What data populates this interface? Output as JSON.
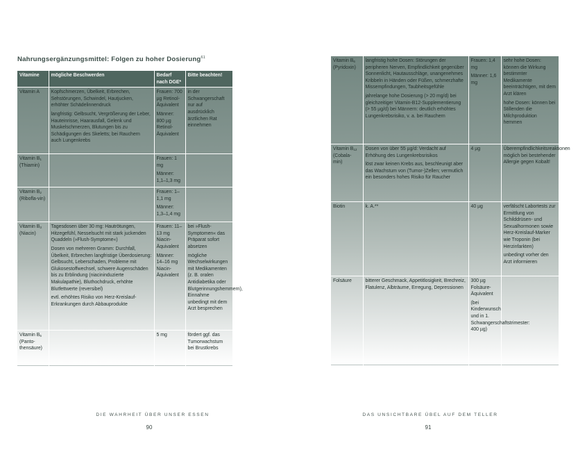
{
  "left_page": {
    "title": "Nahrungsergänzungsmittel: Folgen zu hoher Dosierung",
    "title_footnote": "61",
    "headers": [
      "Vitamine",
      "mögliche Beschwerden",
      "Bedarf nach DGE*",
      "Bitte beachten!"
    ],
    "rows": [
      {
        "name": "Vitamin A",
        "sub": "",
        "extra": "",
        "complaints": [
          "Kopfschmerzen, Übelkeit, Erbrechen, Sehstörungen, Schwindel, Hautjucken, erhöhter Schädelinnendruck",
          "langfristig: Gelbsucht, Vergrößerung der Leber, Hauteinrisse, Haarausfall, Gelenk und Muskelschmerzen, Blutungen bis zu Schädigungen des Skeletts; bei Rauchern auch Lungenkrebs"
        ],
        "need": [
          "Frauen: 700 µg Retinol-Äquivalent",
          "Männer: 800 µg Retinol-Äquivalent"
        ],
        "note": [
          "in der Schwangerschaft nur auf ausdrücklich ärztlichen Rat einnehmen"
        ]
      },
      {
        "name": "Vitamin B",
        "sub": "1",
        "extra": "(Thiamin)",
        "complaints": [],
        "need": [
          "Frauen: 1 mg",
          "Männer: 1,1–1,3 mg"
        ],
        "note": []
      },
      {
        "name": "Vitamin B",
        "sub": "2",
        "extra": "(Ribofla-vin)",
        "complaints": [],
        "need": [
          "Frauen: 1–1,1 mg",
          "Männer: 1,3–1,4 mg"
        ],
        "note": []
      },
      {
        "name": "Vitamin B",
        "sub": "3",
        "extra": "(Niacin)",
        "complaints": [
          "Tagesdosen über 30 mg: Hautrötungen, Hitzegefühl, Nesselsucht mit stark juckenden Quaddeln (»Flush-Symptome«)",
          "Dosen von mehreren Gramm: Durchfall, Übelkeit, Erbrechen langfristige Überdosierung: Gelbsucht, Leberschaden, Probleme mit Glukosestoffwechsel, schwere Augenschäden bis zu Erblindung (niacininduzierte Makulapathie), Bluthochdruck, erhöhte Blutfettwerte (reversibel)",
          "evtl. erhöhtes Risiko von Herz-Kreislauf-Erkrankungen durch Abbauprodukte"
        ],
        "need": [
          "Frauen: 11–13 mg Niacin-Äquivalent",
          "Männer: 14–16 mg Niacin-Äquivalent"
        ],
        "note": [
          "bei »Flush-Symptomen« das Präparat sofort absetzen",
          "mögliche Wechselwirkungen mit Medikamenten (z. B. oralen Antidiabetika oder Blutgerinnungshemmern), Einnahme unbedingt mit dem Arzt besprechen"
        ]
      },
      {
        "name": "Vitamin B",
        "sub": "5",
        "extra": "(Panto-thensäure)",
        "complaints": [],
        "need": [
          "5 mg"
        ],
        "note": [
          "fördert ggf. das Tumorwachstum bei Brustkrebs"
        ]
      }
    ],
    "running_head": "DIE WAHRHEIT ÜBER UNSER ESSEN",
    "page_number": "90"
  },
  "right_page": {
    "rows": [
      {
        "name": "Vitamin B",
        "sub": "6",
        "extra": "(Pyridoxin)",
        "complaints": [
          "langfristig hohe Dosen: Störungen der peripheren Nerven, Empfindlichkeit gegenüber Sonnenlicht, Hautausschläge, unangenehmes Kribbeln in Händen oder Füßen, schmerzhafte Missempfindungen, Taubheitsgefühle",
          "jahrelange hohe Dosierung (> 20 mg/d) bei gleichzeitiger Vitamin-B12-Supplementierung (> 55 µg/d) bei Männern: deutlich erhöhtes Lungenkrebsrisiko, v. a. bei Rauchern"
        ],
        "need": [
          "Frauen: 1,4 mg",
          "Männer: 1,6 mg"
        ],
        "note": [
          "sehr hohe Dosen: können die Wirkung bestimmter Medikamente beeinträchtigen, mit dem Arzt klären",
          "hohe Dosen: können bei Stillenden die Milchproduktion hemmen"
        ]
      },
      {
        "name": "Vitamin B",
        "sub": "12",
        "extra": "(Cobala-min)",
        "complaints": [
          "Dosen von über 55 µg/d: Verdacht auf Erhöhung des Lungenkrebsrisikos",
          "löst zwar keinen Krebs aus, beschleunigt aber das Wachstum von (Tumor-)Zellen; vermutlich ein besonders hohes Risiko für Raucher"
        ],
        "need": [
          "4 µg"
        ],
        "note": [
          "Überempfindlichkeitsreaktionen möglich bei bestehender Allergie gegen Kobalt!"
        ]
      },
      {
        "name": "Biotin",
        "sub": "",
        "extra": "",
        "complaints": [
          "k. A.**"
        ],
        "need": [
          "40 µg"
        ],
        "note": [
          "verfälscht Labortests zur Ermittlung von Schilddrüsen- und Sexualhormonen sowie Herz-Kreislauf-Marker wie Troponin (bei Herzinfarkten)",
          "unbedingt vorher den Arzt informieren"
        ]
      },
      {
        "name": "Folsäure",
        "sub": "",
        "extra": "",
        "complaints": [
          "bitterer Geschmack, Appetitlosigkeit, Brechreiz, Flatulenz, Albträume, Erregung, Depressionen"
        ],
        "need": [
          "300 µg Folsäure-Äquivalent",
          "(bei Kinderwunsch und in 1. Schwangerschaftstrimester: 400 µg)"
        ],
        "note": []
      }
    ],
    "running_head": "DAS UNSICHTBARE ÜBEL AUF DEM TELLER",
    "page_number": "91"
  }
}
